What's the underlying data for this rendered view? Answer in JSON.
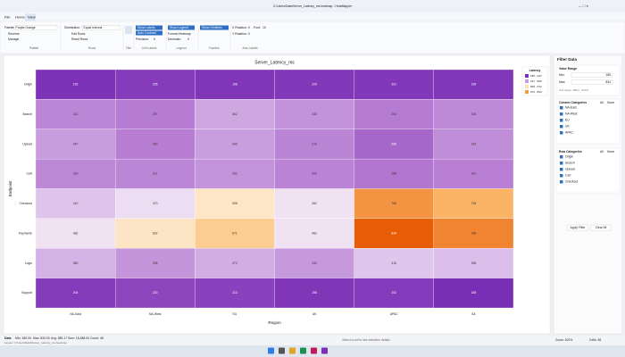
{
  "window": {
    "title": "C:\\Users\\Data\\Server_Latency_ms.heatmap - HeatMapper"
  },
  "menu": [
    "File",
    "Home",
    "View"
  ],
  "ribbon": {
    "palette": {
      "label": "Palette:",
      "value": "Purple-Orange",
      "reverse": "Reverse",
      "manage": "Manage",
      "group": "Palette"
    },
    "rows": {
      "label": "Distribution:",
      "value": "Equal Interval",
      "edit": "Edit Rows",
      "reset": "Reset Rows",
      "group": "Rows"
    },
    "title": {
      "group": "Title"
    },
    "cell_labels": {
      "show": "Show Labels",
      "contrast": "Auto Contrast",
      "precision": "Precision:",
      "precision_value": "0",
      "group": "Cell Labels"
    },
    "legend": {
      "show": "Show Legend",
      "format": "Format:",
      "format_value": "Heatmap",
      "decimals": "Decimals:",
      "decimals_value": "0",
      "group": "Legend"
    },
    "fashion": {
      "show": "Show Gridlines",
      "group": "Fashion"
    },
    "axis_labels": {
      "xrot": "X Rotation:",
      "xrot_value": "0",
      "yrot": "Y Rotation:",
      "yrot_value": "0",
      "font": "Font:",
      "font_value": "10",
      "group": "Axis Labels"
    }
  },
  "chart_data": {
    "type": "heatmap",
    "title": "Server_Latency_ms",
    "x_label": "Region",
    "y_label": "Endpoint",
    "columns": [
      "NA-East",
      "NA-West",
      "EU",
      "UK",
      "APAC",
      "SA"
    ],
    "rows": [
      "Origin",
      "Search",
      "Upload",
      "Cart",
      "Checkout",
      "Payments",
      "Login",
      "Support"
    ],
    "values": [
      [
        192,
        205,
        198,
        200,
        201,
        199
      ],
      [
        311,
        297,
        362,
        330,
        294,
        318
      ],
      [
        347,
        300,
        349,
        310,
        266,
        324
      ],
      [
        316,
        311,
        332,
        309,
        288,
        301
      ],
      [
        410,
        470,
        598,
        482,
        768,
        728
      ],
      [
        482,
        602,
        671,
        482,
        834,
        786
      ],
      [
        380,
        335,
        372,
        340,
        415,
        398
      ],
      [
        204,
        220,
        213,
        198,
        203,
        185
      ]
    ],
    "colormap": [
      "#7a2db5",
      "#b57ad2",
      "#dcc0ea",
      "#f7eef6",
      "#fde4bb",
      "#fbb668",
      "#e85c06"
    ],
    "legend_title": "Latency",
    "legend": [
      {
        "label": "185 - 347",
        "color": "#7a2db5"
      },
      {
        "label": "347 - 509",
        "color": "#c99be0"
      },
      {
        "label": "509 - 672",
        "color": "#fde4bb"
      },
      {
        "label": "672 - 834",
        "color": "#f39a3c"
      }
    ]
  },
  "filter": {
    "title": "Filter Data",
    "range_title": "Value Range",
    "min_label": "Min:",
    "min_value": "185",
    "max_label": "Max:",
    "max_value": "834",
    "range_note": "Cell range: 185.0 - 834.0",
    "col_title": "Column Categories",
    "col_all": "All",
    "col_none": "None",
    "col_items": [
      "NA-East",
      "NA-West",
      "EU",
      "UK",
      "APAC"
    ],
    "row_title": "Row Categories",
    "row_all": "All",
    "row_none": "None",
    "row_items": [
      "Origin",
      "Search",
      "Upload",
      "Cart",
      "Checkout"
    ],
    "apply": "Apply Filter",
    "clear": "Clear All"
  },
  "status": {
    "data": "Data",
    "min": "Min: 185.00",
    "max": "Max: 834.00",
    "avg": "Avg: 385.17",
    "sum": "Sum: 18,488.00",
    "count": "Count: 48",
    "hint": "Select a cell to see selection details",
    "layout": "Layout: C:\\Users\\Data\\Server_Latency_ms.heatmap",
    "zoom": "Zoom: 100%",
    "cells": "Cells: 48"
  }
}
